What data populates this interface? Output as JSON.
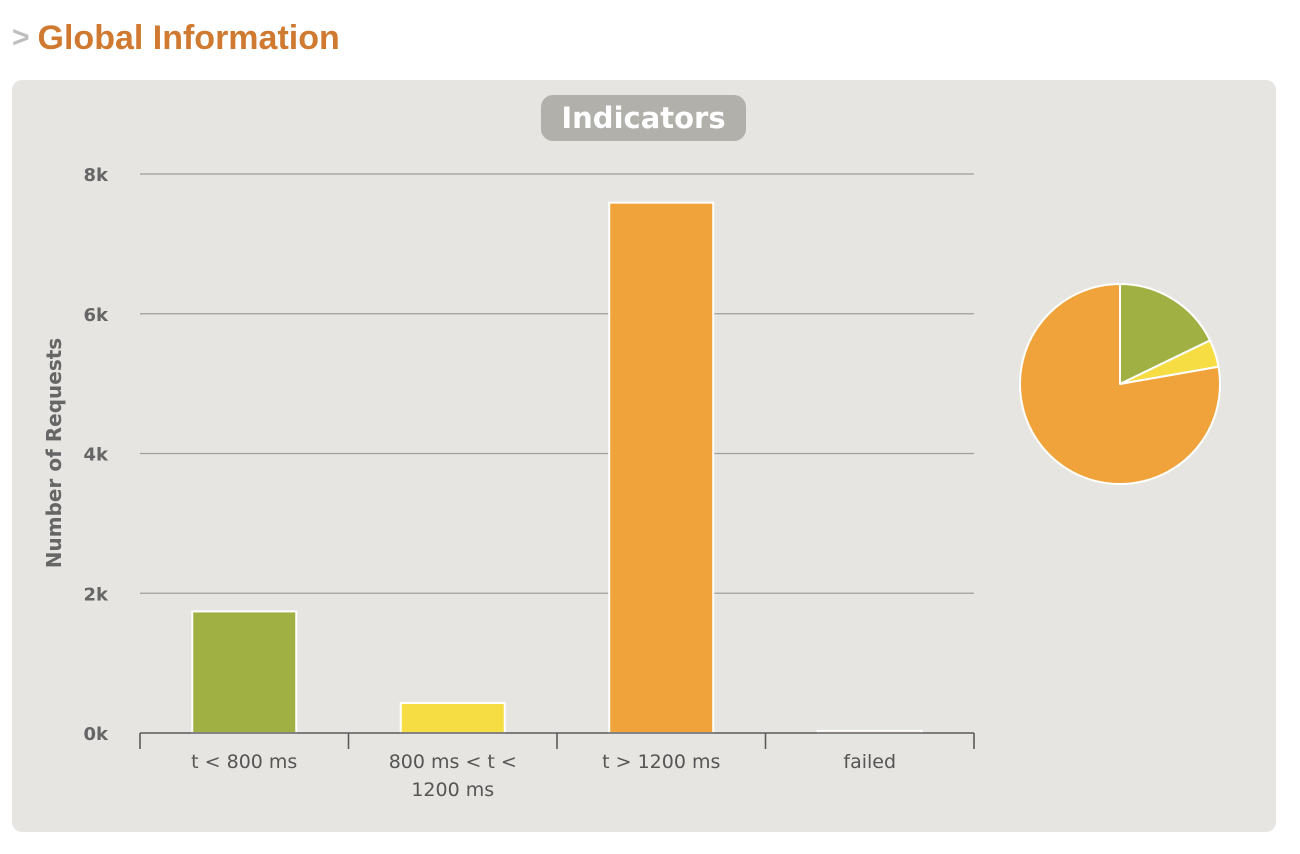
{
  "header": {
    "arrow": ">",
    "title": "Global Information"
  },
  "chart_data": {
    "type": "bar",
    "title": "Indicators",
    "ylabel": "Number of Requests",
    "xlabel": "",
    "categories": [
      "t < 800 ms",
      "800 ms < t < 1200 ms",
      "t > 1200 ms",
      "failed"
    ],
    "category_label_lines": [
      [
        "t < 800 ms"
      ],
      [
        "800 ms < t <",
        "1200 ms"
      ],
      [
        "t > 1200 ms"
      ],
      [
        "failed"
      ]
    ],
    "values": [
      1740,
      430,
      7590,
      30
    ],
    "colors": [
      "#a1b043",
      "#f6dd43",
      "#f0a33a",
      "#ee5847"
    ],
    "ylim": [
      0,
      8000
    ],
    "yticks": [
      0,
      2000,
      4000,
      6000,
      8000
    ],
    "ytick_labels": [
      "0k",
      "2k",
      "4k",
      "6k",
      "8k"
    ],
    "grid": true,
    "legend": false,
    "pie": {
      "values": [
        1740,
        430,
        7590
      ],
      "colors": [
        "#a1b043",
        "#f6dd43",
        "#f0a33a"
      ]
    }
  }
}
